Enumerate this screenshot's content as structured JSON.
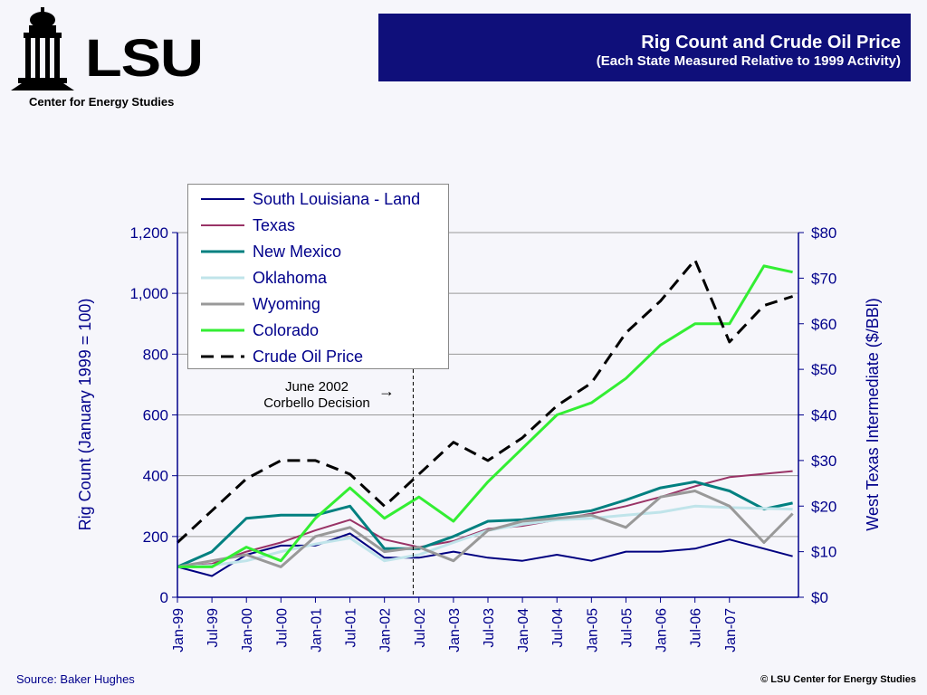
{
  "header": {
    "logo_text": "LSU",
    "logo_subtitle": "Center for Energy Studies",
    "title": "Rig Count and Crude Oil Price",
    "subtitle": "(Each State Measured Relative to 1999 Activity)"
  },
  "footer": {
    "source": "Source:  Baker Hughes",
    "copyright": "© LSU Center for Energy Studies"
  },
  "annotation": {
    "line1": "June 2002",
    "line2": "Corbello Decision",
    "date": "Jun-02"
  },
  "chart_data": {
    "type": "line",
    "ylabel": "Rig Count (January 1999 = 100)",
    "y2label": "West Texas Intermediate ($/BBl)",
    "ylim": [
      0,
      1200
    ],
    "y2lim": [
      0,
      80
    ],
    "yticks": [
      "0",
      "200",
      "400",
      "600",
      "800",
      "1,000",
      "1,200"
    ],
    "y2ticks": [
      "$0",
      "$10",
      "$20",
      "$30",
      "$40",
      "$50",
      "$60",
      "$70",
      "$80"
    ],
    "xticks": [
      "Jan-99",
      "Jul-99",
      "Jan-00",
      "Jul-00",
      "Jan-01",
      "Jul-01",
      "Jan-02",
      "Jul-02",
      "Jan-03",
      "Jul-03",
      "Jan-04",
      "Jul-04",
      "Jan-05",
      "Jul-05",
      "Jan-06",
      "Jul-06",
      "Jan-07"
    ],
    "grid": true,
    "legend_position": "top-left",
    "series": [
      {
        "name": "South Louisiana - Land",
        "color": "#000080",
        "width": 2,
        "dash": "",
        "points": [
          [
            "Jan-99",
            100
          ],
          [
            "Jul-99",
            70
          ],
          [
            "Jan-00",
            140
          ],
          [
            "Jul-00",
            170
          ],
          [
            "Jan-01",
            170
          ],
          [
            "Jul-01",
            210
          ],
          [
            "Jan-02",
            130
          ],
          [
            "Jul-02",
            130
          ],
          [
            "Jan-03",
            150
          ],
          [
            "Jul-03",
            130
          ],
          [
            "Jan-04",
            120
          ],
          [
            "Jul-04",
            140
          ],
          [
            "Jan-05",
            120
          ],
          [
            "Jul-05",
            150
          ],
          [
            "Jan-06",
            150
          ],
          [
            "Jul-06",
            160
          ],
          [
            "Jan-07",
            190
          ],
          [
            "Dec-07",
            135
          ]
        ]
      },
      {
        "name": "Texas",
        "color": "#993366",
        "width": 2,
        "dash": "",
        "points": [
          [
            "Jan-99",
            100
          ],
          [
            "Jul-99",
            110
          ],
          [
            "Jan-00",
            150
          ],
          [
            "Jul-00",
            180
          ],
          [
            "Jan-01",
            220
          ],
          [
            "Jul-01",
            255
          ],
          [
            "Jan-02",
            190
          ],
          [
            "Jul-02",
            165
          ],
          [
            "Jan-03",
            185
          ],
          [
            "Jul-03",
            225
          ],
          [
            "Jan-04",
            235
          ],
          [
            "Jul-04",
            255
          ],
          [
            "Jan-05",
            275
          ],
          [
            "Jul-05",
            300
          ],
          [
            "Jan-06",
            330
          ],
          [
            "Jul-06",
            365
          ],
          [
            "Jan-07",
            395
          ],
          [
            "Dec-07",
            415
          ]
        ]
      },
      {
        "name": "New Mexico",
        "color": "#008080",
        "width": 3,
        "dash": "",
        "points": [
          [
            "Jan-99",
            100
          ],
          [
            "Jul-99",
            150
          ],
          [
            "Jan-00",
            260
          ],
          [
            "Jul-00",
            270
          ],
          [
            "Jan-01",
            270
          ],
          [
            "Jul-01",
            300
          ],
          [
            "Jan-02",
            160
          ],
          [
            "Jul-02",
            160
          ],
          [
            "Jan-03",
            200
          ],
          [
            "Jul-03",
            250
          ],
          [
            "Jan-04",
            255
          ],
          [
            "Jul-04",
            270
          ],
          [
            "Jan-05",
            285
          ],
          [
            "Jul-05",
            320
          ],
          [
            "Jan-06",
            360
          ],
          [
            "Jul-06",
            380
          ],
          [
            "Jan-07",
            350
          ],
          [
            "Jul-07",
            290
          ],
          [
            "Dec-07",
            310
          ]
        ]
      },
      {
        "name": "Oklahoma",
        "color": "#c0e4ea",
        "width": 3,
        "dash": "",
        "points": [
          [
            "Jan-99",
            100
          ],
          [
            "Jul-99",
            105
          ],
          [
            "Jan-00",
            120
          ],
          [
            "Jul-00",
            150
          ],
          [
            "Jan-01",
            175
          ],
          [
            "Jul-01",
            195
          ],
          [
            "Jan-02",
            120
          ],
          [
            "Jul-02",
            140
          ],
          [
            "Jan-03",
            180
          ],
          [
            "Jul-03",
            220
          ],
          [
            "Jan-04",
            240
          ],
          [
            "Jul-04",
            255
          ],
          [
            "Jan-05",
            260
          ],
          [
            "Jul-05",
            270
          ],
          [
            "Jan-06",
            280
          ],
          [
            "Jul-06",
            300
          ],
          [
            "Jan-07",
            295
          ],
          [
            "Dec-07",
            290
          ]
        ]
      },
      {
        "name": "Wyoming",
        "color": "#999999",
        "width": 3,
        "dash": "",
        "points": [
          [
            "Jan-99",
            100
          ],
          [
            "Jul-99",
            120
          ],
          [
            "Jan-00",
            140
          ],
          [
            "Jul-00",
            100
          ],
          [
            "Jan-01",
            200
          ],
          [
            "Jul-01",
            230
          ],
          [
            "Jan-02",
            150
          ],
          [
            "Jul-02",
            165
          ],
          [
            "Jan-03",
            120
          ],
          [
            "Jul-03",
            220
          ],
          [
            "Jan-04",
            250
          ],
          [
            "Jul-04",
            260
          ],
          [
            "Jan-05",
            270
          ],
          [
            "Jul-05",
            230
          ],
          [
            "Jan-06",
            330
          ],
          [
            "Jul-06",
            350
          ],
          [
            "Jan-07",
            300
          ],
          [
            "Jul-07",
            180
          ],
          [
            "Dec-07",
            275
          ]
        ]
      },
      {
        "name": "Colorado",
        "color": "#33ee33",
        "width": 3,
        "dash": "",
        "points": [
          [
            "Jan-99",
            100
          ],
          [
            "Jul-99",
            100
          ],
          [
            "Jan-00",
            165
          ],
          [
            "Jul-00",
            120
          ],
          [
            "Jan-01",
            260
          ],
          [
            "Jul-01",
            360
          ],
          [
            "Jan-02",
            260
          ],
          [
            "Jul-02",
            330
          ],
          [
            "Jan-03",
            250
          ],
          [
            "Jul-03",
            380
          ],
          [
            "Jan-04",
            490
          ],
          [
            "Jul-04",
            600
          ],
          [
            "Jan-05",
            640
          ],
          [
            "Jul-05",
            720
          ],
          [
            "Jan-06",
            830
          ],
          [
            "Jul-06",
            900
          ],
          [
            "Jan-07",
            900
          ],
          [
            "Jul-07",
            1090
          ],
          [
            "Dec-07",
            1070
          ]
        ]
      },
      {
        "name": "Crude Oil Price",
        "color": "#000000",
        "width": 3,
        "dash": "14,8",
        "axis": "y2",
        "points": [
          [
            "Jan-99",
            12
          ],
          [
            "Jul-99",
            19
          ],
          [
            "Jan-00",
            26
          ],
          [
            "Jul-00",
            30
          ],
          [
            "Jan-01",
            30
          ],
          [
            "Jul-01",
            27
          ],
          [
            "Jan-02",
            20
          ],
          [
            "Jul-02",
            27
          ],
          [
            "Jan-03",
            34
          ],
          [
            "Jul-03",
            30
          ],
          [
            "Jan-04",
            35
          ],
          [
            "Jul-04",
            42
          ],
          [
            "Jan-05",
            47
          ],
          [
            "Jul-05",
            58
          ],
          [
            "Jan-06",
            65
          ],
          [
            "Jul-06",
            74
          ],
          [
            "Jan-07",
            56
          ],
          [
            "Jul-07",
            64
          ],
          [
            "Dec-07",
            66
          ]
        ]
      }
    ]
  }
}
